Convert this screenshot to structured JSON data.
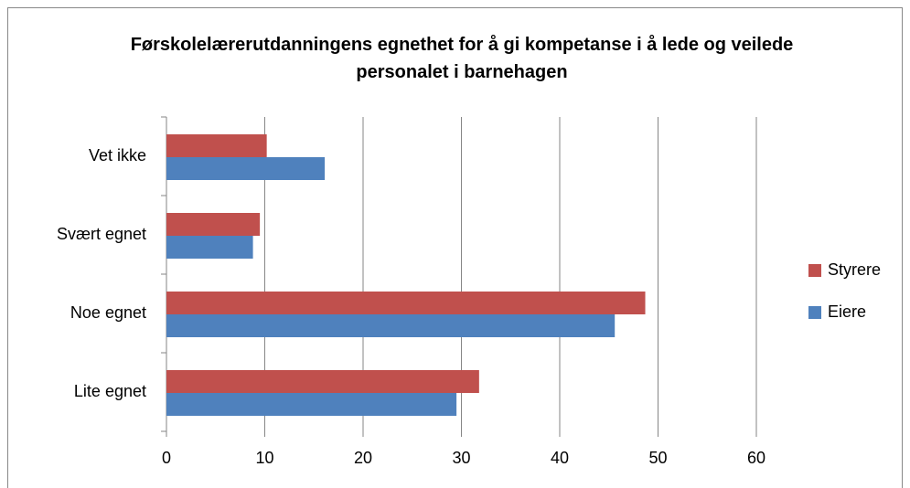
{
  "chart_data": {
    "type": "barh",
    "title": "Førskolelærerutdanningens egnethet for å gi kompetanse i å lede og veilede personalet i barnehagen",
    "categories": [
      "Lite egnet",
      "Noe egnet",
      "Svært egnet",
      "Vet ikke"
    ],
    "series": [
      {
        "name": "Eiere",
        "color": "#4f81bd",
        "values": [
          29.5,
          45.6,
          8.8,
          16.1
        ]
      },
      {
        "name": "Styrere",
        "color": "#c0504d",
        "values": [
          31.8,
          48.7,
          9.5,
          10.2
        ]
      }
    ],
    "xlim": [
      0,
      60
    ],
    "xticks": [
      0,
      10,
      20,
      30,
      40,
      50,
      60
    ],
    "grid": true,
    "legend": "right"
  }
}
